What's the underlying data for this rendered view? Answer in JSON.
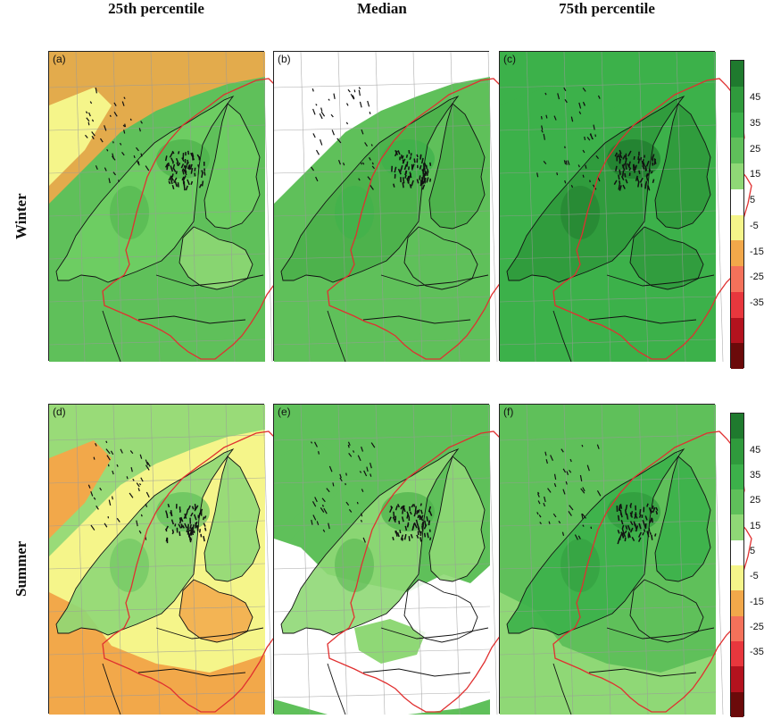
{
  "columns": [
    "25th percentile",
    "Median",
    "75th percentile"
  ],
  "rows": [
    "Winter",
    "Summer"
  ],
  "panels": [
    {
      "label": "(a)",
      "scheme": "w25"
    },
    {
      "label": "(b)",
      "scheme": "wmed"
    },
    {
      "label": "(c)",
      "scheme": "w75"
    },
    {
      "label": "(d)",
      "scheme": "s25"
    },
    {
      "label": "(e)",
      "scheme": "smed"
    },
    {
      "label": "(f)",
      "scheme": "s75"
    }
  ],
  "colorbar": {
    "ticks": [
      "45",
      "35",
      "25",
      "15",
      "5",
      "-5",
      "-15",
      "-25",
      "-35"
    ],
    "colors": [
      "#1f7a2e",
      "#2f9a3c",
      "#3cb14a",
      "#5fc05a",
      "#8fd876",
      "#ffffff",
      "#f5f58a",
      "#f2a84a",
      "#f4715a",
      "#e8373d",
      "#b3121e",
      "#6b0a0a"
    ]
  },
  "colors": {
    "map_outline": "#111111",
    "domain_outline": "#e03030",
    "grid": "#9a9a9a"
  }
}
